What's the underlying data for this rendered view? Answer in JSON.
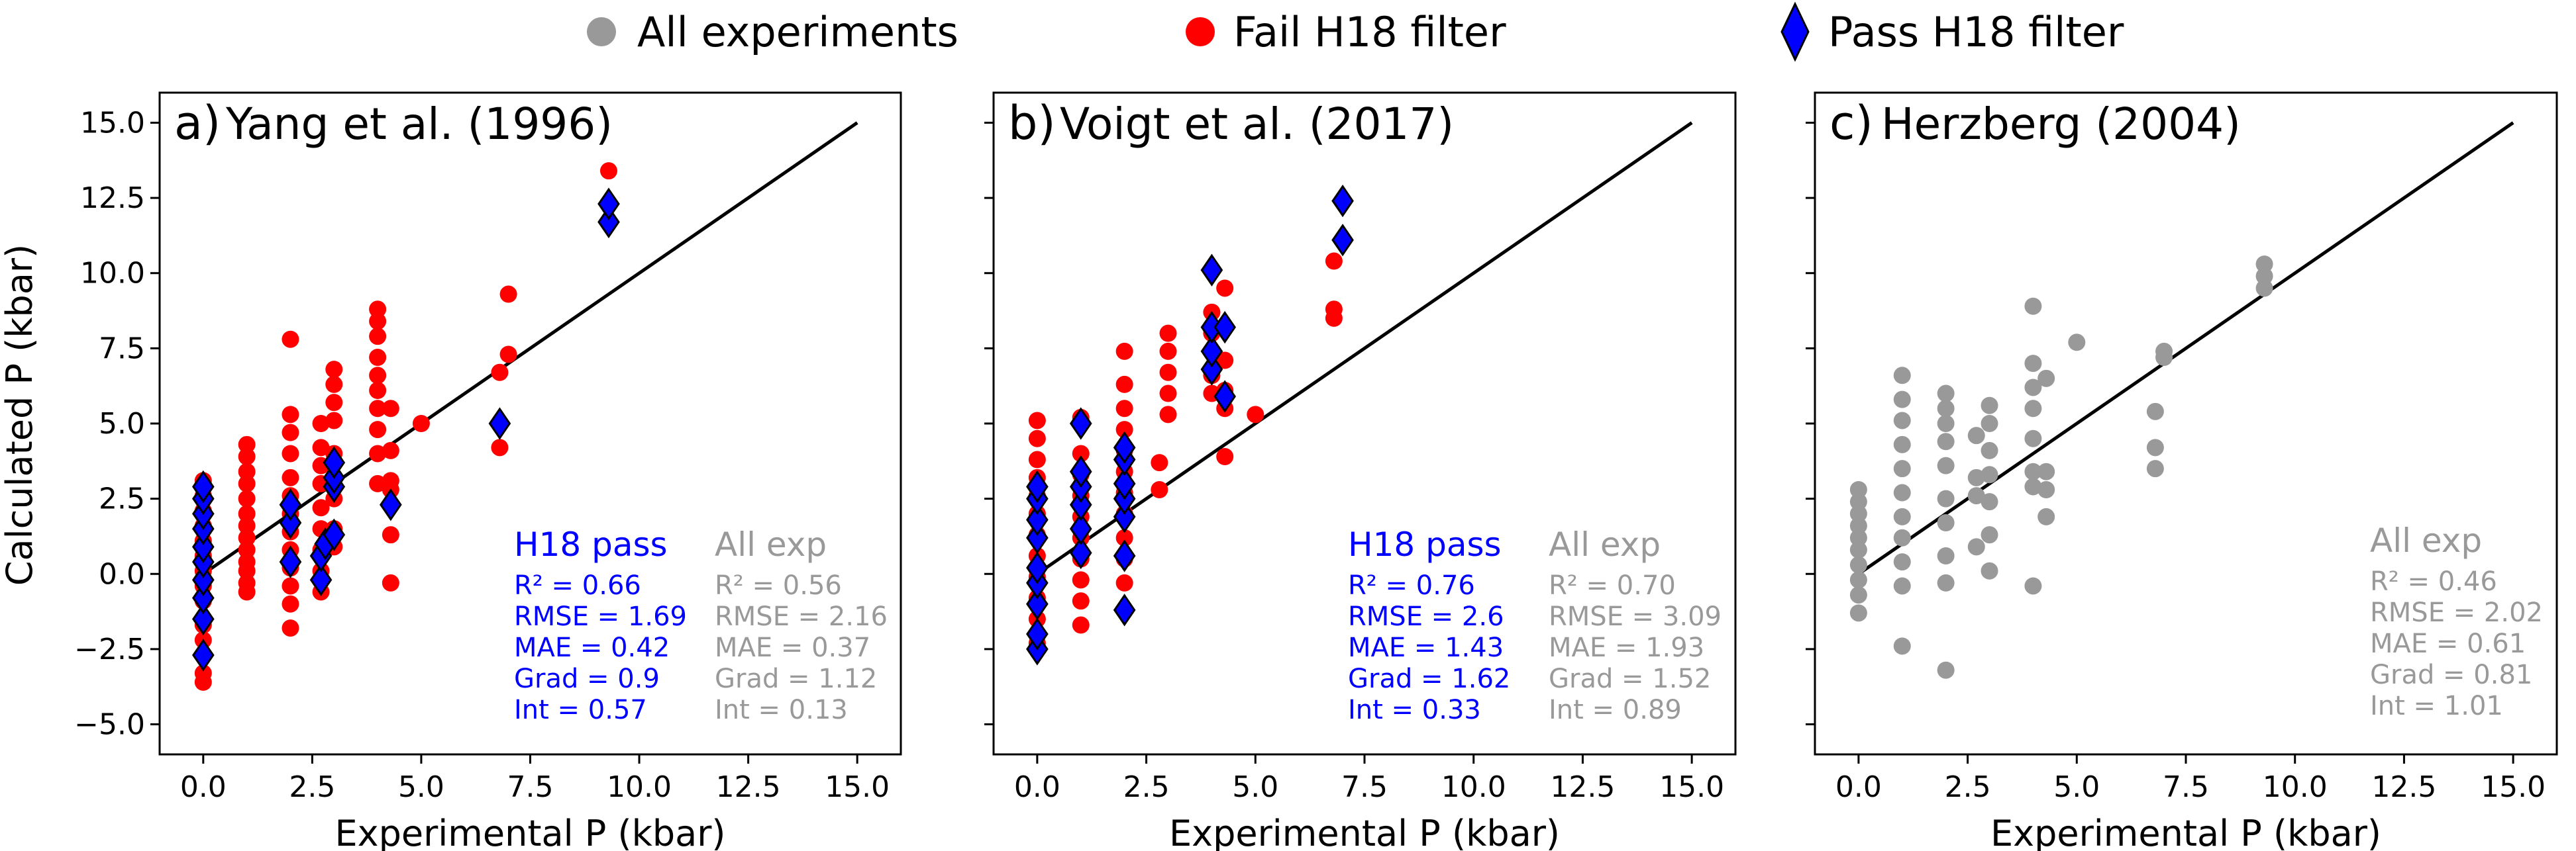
{
  "legend": {
    "items": [
      {
        "label": "All experiments",
        "marker": "circle",
        "color": "#999999"
      },
      {
        "label": "Fail H18 filter",
        "marker": "circle",
        "color": "#ff0000"
      },
      {
        "label": "Pass H18 filter",
        "marker": "diamond",
        "color": "#0000ff"
      }
    ]
  },
  "shared_axes": {
    "xlabel": "Experimental P (kbar)",
    "ylabel": "Calculated P (kbar)",
    "xlim": [
      -1.0,
      16.0
    ],
    "ylim": [
      -6.0,
      16.0
    ],
    "xticks": [
      "0.0",
      "2.5",
      "5.0",
      "7.5",
      "10.0",
      "12.5",
      "15.0"
    ],
    "yticks": [
      "−5.0",
      "−2.5",
      "0.0",
      "2.5",
      "5.0",
      "7.5",
      "10.0",
      "12.5",
      "15.0"
    ],
    "one_to_one_line": [
      [
        0,
        0
      ],
      [
        15,
        15
      ]
    ]
  },
  "colors": {
    "all": "#999999",
    "fail": "#ff0000",
    "pass": "#0000ff",
    "line": "#000000"
  },
  "chart_data": [
    {
      "type": "scatter",
      "panel_label": "a)",
      "title": "Yang et al. (1996)",
      "stats_pass": {
        "heading": "H18 pass",
        "lines": [
          "R² = 0.66",
          "RMSE = 1.69",
          "MAE = 0.42",
          "Grad = 0.9",
          "Int = 0.57"
        ]
      },
      "stats_all": {
        "heading": "All exp",
        "lines": [
          "R² = 0.56",
          "RMSE = 2.16",
          "MAE = 0.37",
          "Grad = 1.12",
          "Int = 0.13"
        ]
      },
      "series": [
        {
          "name": "Fail H18 filter",
          "marker": "circle",
          "points": [
            [
              0,
              -3.6
            ],
            [
              0,
              -3.3
            ],
            [
              0,
              -2.2
            ],
            [
              0,
              -1.7
            ],
            [
              0,
              -0.9
            ],
            [
              0,
              -0.4
            ],
            [
              0,
              0.1
            ],
            [
              0,
              0.6
            ],
            [
              0,
              1.1
            ],
            [
              0,
              1.6
            ],
            [
              0,
              2.1
            ],
            [
              0,
              2.6
            ],
            [
              0,
              3.1
            ],
            [
              1,
              -0.6
            ],
            [
              1,
              -0.3
            ],
            [
              1,
              0.1
            ],
            [
              1,
              0.4
            ],
            [
              1,
              0.8
            ],
            [
              1,
              1.2
            ],
            [
              1,
              1.6
            ],
            [
              1,
              2.0
            ],
            [
              1,
              2.5
            ],
            [
              1,
              3.0
            ],
            [
              1,
              3.4
            ],
            [
              1,
              3.9
            ],
            [
              1,
              4.3
            ],
            [
              2,
              -1.8
            ],
            [
              2,
              -1.0
            ],
            [
              2,
              -0.4
            ],
            [
              2,
              0.2
            ],
            [
              2,
              0.8
            ],
            [
              2,
              1.4
            ],
            [
              2,
              2.0
            ],
            [
              2,
              2.6
            ],
            [
              2,
              3.2
            ],
            [
              2,
              4.0
            ],
            [
              2,
              4.7
            ],
            [
              2,
              5.3
            ],
            [
              2,
              7.8
            ],
            [
              2.7,
              -0.6
            ],
            [
              2.7,
              0.1
            ],
            [
              2.7,
              0.8
            ],
            [
              2.7,
              1.5
            ],
            [
              2.7,
              2.2
            ],
            [
              2.7,
              3.0
            ],
            [
              2.7,
              3.6
            ],
            [
              2.7,
              4.2
            ],
            [
              2.7,
              5.0
            ],
            [
              3,
              0.9
            ],
            [
              3,
              1.5
            ],
            [
              3,
              2.5
            ],
            [
              3,
              3.2
            ],
            [
              3,
              4.0
            ],
            [
              3,
              5.1
            ],
            [
              3,
              5.7
            ],
            [
              3,
              6.3
            ],
            [
              3,
              6.8
            ],
            [
              4,
              3.0
            ],
            [
              4,
              4.0
            ],
            [
              4,
              4.8
            ],
            [
              4,
              5.5
            ],
            [
              4,
              6.1
            ],
            [
              4,
              6.6
            ],
            [
              4,
              7.2
            ],
            [
              4,
              7.9
            ],
            [
              4,
              8.4
            ],
            [
              4,
              8.8
            ],
            [
              4.3,
              -0.3
            ],
            [
              4.3,
              1.3
            ],
            [
              4.3,
              2.8
            ],
            [
              4.3,
              3.1
            ],
            [
              4.3,
              4.1
            ],
            [
              4.3,
              5.5
            ],
            [
              5,
              5.0
            ],
            [
              6.8,
              4.2
            ],
            [
              6.8,
              6.7
            ],
            [
              7,
              7.3
            ],
            [
              7,
              9.3
            ],
            [
              9.3,
              13.4
            ]
          ]
        },
        {
          "name": "Pass H18 filter",
          "marker": "diamond",
          "points": [
            [
              0,
              -2.7
            ],
            [
              0,
              -1.5
            ],
            [
              0,
              -0.8
            ],
            [
              0,
              -0.2
            ],
            [
              0,
              0.4
            ],
            [
              0,
              0.9
            ],
            [
              0,
              1.5
            ],
            [
              0,
              2.0
            ],
            [
              0,
              2.5
            ],
            [
              0,
              2.9
            ],
            [
              2,
              0.4
            ],
            [
              2,
              1.7
            ],
            [
              2,
              2.3
            ],
            [
              2.7,
              -0.2
            ],
            [
              2.7,
              0.6
            ],
            [
              2.8,
              1.0
            ],
            [
              3,
              1.3
            ],
            [
              3,
              2.9
            ],
            [
              3,
              3.2
            ],
            [
              3,
              3.7
            ],
            [
              4.3,
              2.3
            ],
            [
              6.8,
              5.0
            ],
            [
              9.3,
              11.7
            ],
            [
              9.3,
              12.3
            ]
          ]
        }
      ]
    },
    {
      "type": "scatter",
      "panel_label": "b)",
      "title": "Voigt et al. (2017)",
      "stats_pass": {
        "heading": "H18 pass",
        "lines": [
          "R² = 0.76",
          "RMSE = 2.6",
          "MAE = 1.43",
          "Grad = 1.62",
          "Int = 0.33"
        ]
      },
      "stats_all": {
        "heading": "All exp",
        "lines": [
          "R² = 0.70",
          "RMSE = 3.09",
          "MAE = 1.93",
          "Grad = 1.52",
          "Int = 0.89"
        ]
      },
      "series": [
        {
          "name": "Fail H18 filter",
          "marker": "circle",
          "points": [
            [
              0,
              -2.3
            ],
            [
              0,
              -1.5
            ],
            [
              0,
              -0.8
            ],
            [
              0,
              -0.1
            ],
            [
              0,
              0.6
            ],
            [
              0,
              1.3
            ],
            [
              0,
              2.0
            ],
            [
              0,
              2.6
            ],
            [
              0,
              3.2
            ],
            [
              0,
              3.8
            ],
            [
              0,
              4.5
            ],
            [
              0,
              5.1
            ],
            [
              1,
              -1.7
            ],
            [
              1,
              -0.9
            ],
            [
              1,
              -0.2
            ],
            [
              1,
              0.5
            ],
            [
              1,
              1.2
            ],
            [
              1,
              1.9
            ],
            [
              1,
              2.6
            ],
            [
              1,
              3.3
            ],
            [
              1,
              4.0
            ],
            [
              1,
              5.2
            ],
            [
              2,
              -0.3
            ],
            [
              2,
              0.5
            ],
            [
              2,
              1.2
            ],
            [
              2,
              2.0
            ],
            [
              2,
              2.7
            ],
            [
              2,
              3.4
            ],
            [
              2,
              4.1
            ],
            [
              2,
              4.8
            ],
            [
              2,
              5.5
            ],
            [
              2,
              6.3
            ],
            [
              2,
              7.4
            ],
            [
              2.8,
              2.8
            ],
            [
              2.8,
              3.7
            ],
            [
              3,
              5.3
            ],
            [
              3,
              6.0
            ],
            [
              3,
              6.7
            ],
            [
              3,
              7.4
            ],
            [
              3,
              8.0
            ],
            [
              4,
              6.0
            ],
            [
              4,
              6.6
            ],
            [
              4,
              7.4
            ],
            [
              4,
              8.0
            ],
            [
              4,
              8.7
            ],
            [
              4.3,
              3.9
            ],
            [
              4.3,
              5.5
            ],
            [
              4.3,
              6.1
            ],
            [
              4.3,
              7.1
            ],
            [
              4.3,
              9.5
            ],
            [
              5,
              5.3
            ],
            [
              6.8,
              8.5
            ],
            [
              6.8,
              8.8
            ],
            [
              6.8,
              10.4
            ]
          ]
        },
        {
          "name": "Pass H18 filter",
          "marker": "diamond",
          "points": [
            [
              0,
              -2.5
            ],
            [
              0,
              -2.0
            ],
            [
              0,
              -1.0
            ],
            [
              0,
              -0.3
            ],
            [
              0,
              0.2
            ],
            [
              0,
              1.2
            ],
            [
              0,
              1.8
            ],
            [
              0,
              2.5
            ],
            [
              0,
              2.9
            ],
            [
              1,
              0.7
            ],
            [
              1,
              1.5
            ],
            [
              1,
              2.3
            ],
            [
              1,
              2.9
            ],
            [
              1,
              3.4
            ],
            [
              1,
              5.0
            ],
            [
              2,
              -1.2
            ],
            [
              2,
              0.6
            ],
            [
              2,
              1.9
            ],
            [
              2,
              2.5
            ],
            [
              2,
              3.0
            ],
            [
              2,
              3.8
            ],
            [
              2,
              4.2
            ],
            [
              4,
              6.8
            ],
            [
              4,
              7.4
            ],
            [
              4,
              8.2
            ],
            [
              4,
              10.1
            ],
            [
              4.3,
              5.9
            ],
            [
              4.3,
              8.2
            ],
            [
              7,
              11.1
            ],
            [
              7,
              12.4
            ]
          ]
        }
      ]
    },
    {
      "type": "scatter",
      "panel_label": "c)",
      "title": "Herzberg (2004)",
      "stats_all": {
        "heading": "All exp",
        "lines": [
          "R² = 0.46",
          "RMSE = 2.02",
          "MAE = 0.61",
          "Grad = 0.81",
          "Int = 1.01"
        ]
      },
      "series": [
        {
          "name": "All experiments",
          "marker": "circle",
          "points": [
            [
              0,
              -1.3
            ],
            [
              0,
              -0.7
            ],
            [
              0,
              -0.2
            ],
            [
              0,
              0.3
            ],
            [
              0,
              0.8
            ],
            [
              0,
              1.2
            ],
            [
              0,
              1.6
            ],
            [
              0,
              2.0
            ],
            [
              0,
              2.4
            ],
            [
              0,
              2.8
            ],
            [
              1,
              -2.4
            ],
            [
              1,
              -0.4
            ],
            [
              1,
              0.4
            ],
            [
              1,
              1.2
            ],
            [
              1,
              1.9
            ],
            [
              1,
              2.7
            ],
            [
              1,
              3.5
            ],
            [
              1,
              4.3
            ],
            [
              1,
              5.1
            ],
            [
              1,
              5.8
            ],
            [
              1,
              6.6
            ],
            [
              2,
              -3.2
            ],
            [
              2,
              -0.3
            ],
            [
              2,
              0.6
            ],
            [
              2,
              1.7
            ],
            [
              2,
              2.5
            ],
            [
              2,
              3.6
            ],
            [
              2,
              4.4
            ],
            [
              2,
              5.0
            ],
            [
              2,
              5.5
            ],
            [
              2,
              6.0
            ],
            [
              2.7,
              0.9
            ],
            [
              2.7,
              2.6
            ],
            [
              2.7,
              3.2
            ],
            [
              2.7,
              4.6
            ],
            [
              3,
              0.1
            ],
            [
              3,
              1.3
            ],
            [
              3,
              2.4
            ],
            [
              3,
              3.3
            ],
            [
              3,
              4.1
            ],
            [
              3,
              5.0
            ],
            [
              3,
              5.6
            ],
            [
              4,
              -0.4
            ],
            [
              4,
              2.9
            ],
            [
              4,
              3.4
            ],
            [
              4,
              4.5
            ],
            [
              4,
              5.5
            ],
            [
              4,
              6.2
            ],
            [
              4,
              7.0
            ],
            [
              4,
              8.9
            ],
            [
              4.3,
              1.9
            ],
            [
              4.3,
              2.8
            ],
            [
              4.3,
              3.4
            ],
            [
              4.3,
              6.5
            ],
            [
              5,
              7.7
            ],
            [
              6.8,
              3.5
            ],
            [
              6.8,
              4.2
            ],
            [
              6.8,
              5.4
            ],
            [
              7,
              7.2
            ],
            [
              7,
              7.4
            ],
            [
              9.3,
              9.5
            ],
            [
              9.3,
              9.9
            ],
            [
              9.3,
              10.3
            ]
          ]
        }
      ]
    }
  ]
}
